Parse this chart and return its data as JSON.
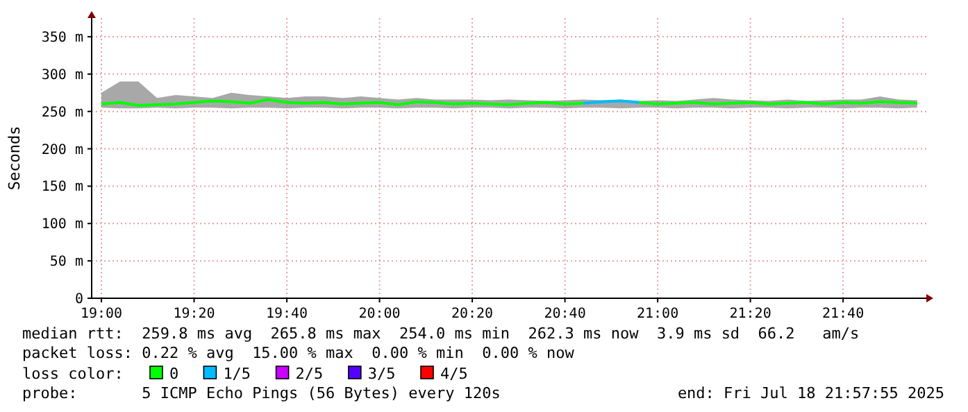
{
  "chart_data": {
    "type": "line",
    "ylabel": "Seconds",
    "legend_title": "loss color:",
    "legend": "bottom",
    "grid": true,
    "marker": "none",
    "line_style": "solid",
    "x": [
      19.0,
      19.067,
      19.133,
      19.2,
      19.267,
      19.333,
      19.4,
      19.467,
      19.533,
      19.6,
      19.667,
      19.733,
      19.8,
      19.867,
      19.933,
      20.0,
      20.067,
      20.133,
      20.2,
      20.267,
      20.333,
      20.4,
      20.467,
      20.533,
      20.6,
      20.667,
      20.733,
      20.8,
      20.867,
      20.933,
      21.0,
      21.067,
      21.133,
      21.2,
      21.267,
      21.333,
      21.4,
      21.467,
      21.533,
      21.6,
      21.667,
      21.733,
      21.8,
      21.867,
      21.933
    ],
    "xlim": [
      18.965,
      21.966
    ],
    "xticks": [
      {
        "value": 19,
        "label": "19:00"
      },
      {
        "value": 19.3333,
        "label": "19:20"
      },
      {
        "value": 19.6667,
        "label": "19:40"
      },
      {
        "value": 20,
        "label": "20:00"
      },
      {
        "value": 20.3333,
        "label": "20:20"
      },
      {
        "value": 20.6667,
        "label": "20:40"
      },
      {
        "value": 21,
        "label": "21:00"
      },
      {
        "value": 21.3333,
        "label": "21:20"
      },
      {
        "value": 21.6667,
        "label": "21:40"
      }
    ],
    "ylim": [
      0,
      375
    ],
    "yticks": [
      0,
      {
        "value": 50,
        "label": "50 m"
      },
      {
        "value": 100,
        "label": "100 m"
      },
      {
        "value": 150,
        "label": "150 m"
      },
      {
        "value": 200,
        "label": "200 m"
      },
      {
        "value": 250,
        "label": "250 m"
      },
      {
        "value": 300,
        "label": "300 m"
      },
      {
        "value": 350,
        "label": "350 m"
      }
    ],
    "series": [
      {
        "name": "0",
        "color": "#00ff00",
        "values": [
          260,
          262,
          258,
          259,
          260,
          262,
          264,
          263,
          261,
          266,
          262,
          261,
          262,
          260,
          261,
          262,
          259,
          263,
          262,
          260,
          261,
          260,
          259,
          261,
          262,
          260,
          261,
          null,
          null,
          262,
          260,
          261,
          262,
          260,
          261,
          262,
          260,
          261,
          262,
          260,
          262,
          261,
          263,
          262,
          261
        ],
        "lower": [
          255,
          254,
          254,
          255,
          254,
          255,
          255,
          254,
          255,
          255,
          254,
          255,
          255,
          254,
          255,
          255,
          254,
          255,
          255,
          254,
          255,
          255,
          254,
          255,
          255,
          254,
          255,
          255,
          254,
          255,
          255,
          254,
          255,
          255,
          254,
          255,
          255,
          254,
          255,
          255,
          254,
          255,
          255,
          254,
          255
        ],
        "upper": [
          275,
          290,
          290,
          268,
          272,
          270,
          268,
          275,
          272,
          270,
          268,
          270,
          270,
          268,
          270,
          268,
          266,
          268,
          266,
          266,
          266,
          265,
          266,
          265,
          264,
          265,
          266,
          265,
          266,
          264,
          265,
          264,
          266,
          268,
          266,
          265,
          264,
          266,
          264,
          265,
          266,
          266,
          270,
          266,
          265
        ]
      },
      {
        "name": "1/5",
        "color": "#00bbff",
        "values": [
          null,
          null,
          null,
          null,
          null,
          null,
          null,
          null,
          null,
          null,
          null,
          null,
          null,
          null,
          null,
          null,
          null,
          null,
          null,
          null,
          null,
          null,
          null,
          null,
          null,
          null,
          261,
          263,
          264,
          262,
          null,
          null,
          null,
          null,
          null,
          null,
          null,
          null,
          null,
          null,
          null,
          null,
          null,
          null,
          null
        ]
      },
      {
        "name": "2/5",
        "color": "#cc00ff",
        "values": [
          null,
          null,
          null,
          null,
          null,
          null,
          null,
          null,
          null,
          null,
          null,
          null,
          null,
          null,
          null,
          null,
          null,
          null,
          null,
          null,
          null,
          null,
          null,
          null,
          null,
          null,
          null,
          null,
          null,
          null,
          null,
          null,
          null,
          null,
          null,
          null,
          null,
          null,
          null,
          null,
          null,
          null,
          null,
          null,
          null
        ]
      },
      {
        "name": "3/5",
        "color": "#5500ff",
        "values": [
          null,
          null,
          null,
          null,
          null,
          null,
          null,
          null,
          null,
          null,
          null,
          null,
          null,
          null,
          null,
          null,
          null,
          null,
          null,
          null,
          null,
          null,
          null,
          null,
          null,
          null,
          null,
          null,
          null,
          null,
          null,
          null,
          null,
          null,
          null,
          null,
          null,
          null,
          null,
          null,
          null,
          null,
          null,
          null,
          null
        ]
      },
      {
        "name": "4/5",
        "color": "#ff0000",
        "values": [
          null,
          null,
          null,
          null,
          null,
          null,
          null,
          null,
          null,
          null,
          null,
          null,
          null,
          null,
          null,
          null,
          null,
          null,
          null,
          null,
          null,
          null,
          null,
          null,
          null,
          null,
          null,
          null,
          null,
          null,
          null,
          null,
          null,
          null,
          null,
          null,
          null,
          null,
          null,
          null,
          null,
          null,
          null,
          null,
          null
        ]
      }
    ],
    "annotations": [
      "median rtt:  259.8 ms avg  265.8 ms max  254.0 ms min  262.3 ms now  3.9 ms sd  66.2   am/s",
      "packet loss: 0.22 % avg  15.00 % max  0.00 % min  0.00 % now",
      "probe:       5 ICMP Echo Pings (56 Bytes) every 120s",
      "end: Fri Jul 18 21:57:55 2025"
    ]
  }
}
